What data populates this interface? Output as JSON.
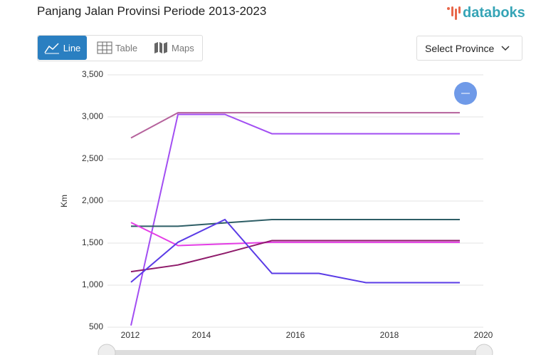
{
  "brand": "databoks",
  "tabs": [
    "Line",
    "Table",
    "Maps"
  ],
  "select": "Select Province",
  "chart_data": {
    "type": "line",
    "title": "Panjang Jalan Provinsi Periode 2013-2023",
    "y_label": "Km",
    "x": [
      2012.5,
      2013.5,
      2014.5,
      2015.5,
      2016.5,
      2017.5,
      2018.5,
      2019.5
    ],
    "xlim": [
      2012,
      2020
    ],
    "xticks": [
      2012,
      2014,
      2016,
      2018,
      2020
    ],
    "ylim": [
      500,
      3500
    ],
    "yticks": [
      500,
      {
        "value": 1000,
        "label": "1,000"
      },
      {
        "value": 1500,
        "label": "1,500"
      },
      {
        "value": 2000,
        "label": "2,000"
      },
      {
        "value": 2500,
        "label": "2,500"
      },
      {
        "value": 3000,
        "label": "3,000"
      },
      {
        "value": 3500,
        "label": "3,500"
      }
    ],
    "grid": true,
    "series": [
      {
        "color": "#b5629c",
        "values": [
          2750,
          3050,
          3050,
          3050,
          3050,
          3050,
          3050,
          3050
        ]
      },
      {
        "color": "#a24ef2",
        "values": [
          520,
          3030,
          3030,
          2800,
          2800,
          2800,
          2800,
          2800
        ]
      },
      {
        "color": "#2e5e66",
        "values": [
          1700,
          1700,
          1740,
          1780,
          1780,
          1780,
          1780,
          1780
        ]
      },
      {
        "color": "#e43ee6",
        "values": [
          1745,
          1470,
          1490,
          1510,
          1510,
          1510,
          1510,
          1510
        ]
      },
      {
        "color": "#8e1a6a",
        "values": [
          1160,
          1240,
          1380,
          1530,
          1530,
          1530,
          1530,
          1530
        ]
      },
      {
        "color": "#5a3be6",
        "values": [
          1035,
          1510,
          1780,
          1140,
          1140,
          1030,
          1030,
          1030
        ]
      }
    ]
  }
}
